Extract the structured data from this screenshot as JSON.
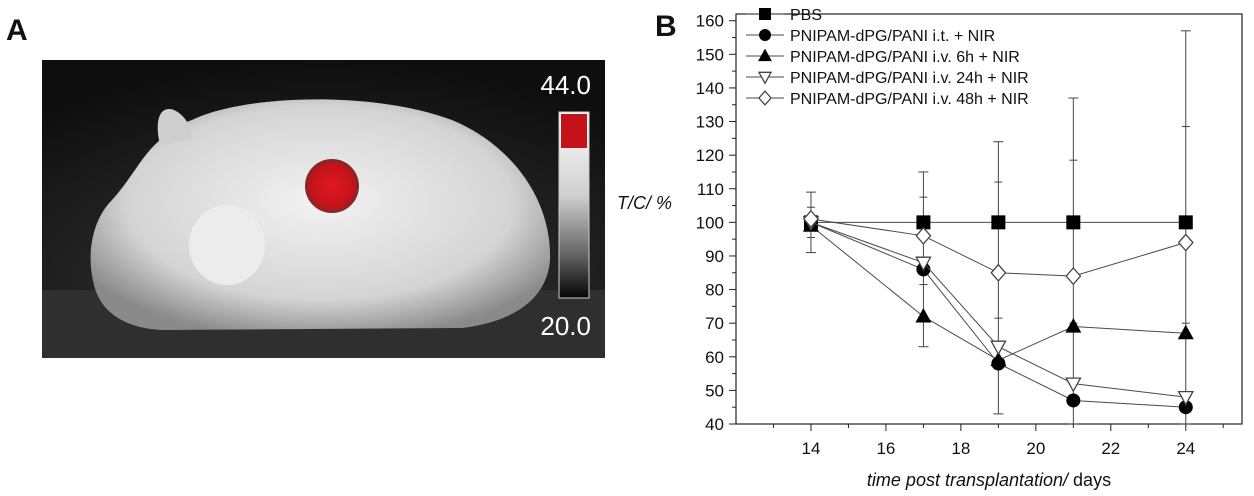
{
  "panels": {
    "a_letter": "A",
    "b_letter": "B"
  },
  "thermal_image": {
    "scale_max": "44.0",
    "scale_min": "20.0",
    "hotspot_color": "#cc1016"
  },
  "chart_data": {
    "type": "line",
    "xlabel_italic": "time post transplantation/",
    "xlabel_unit": "days",
    "ylabel": "T/C/ %",
    "xlim": [
      12,
      25.5
    ],
    "ylim": [
      40,
      162
    ],
    "x_ticks": [
      14,
      16,
      18,
      20,
      22,
      24
    ],
    "y_ticks": [
      40,
      50,
      60,
      70,
      80,
      90,
      100,
      110,
      120,
      130,
      140,
      150,
      160
    ],
    "legend_position": "top-left",
    "series": [
      {
        "name": "PBS",
        "marker": "square-filled",
        "points": [
          [
            14,
            100
          ],
          [
            17,
            100
          ],
          [
            19,
            100
          ],
          [
            21,
            100
          ],
          [
            24,
            100
          ]
        ]
      },
      {
        "name": "PNIPAM-dPG/PANI i.t. + NIR",
        "marker": "circle-filled",
        "points": [
          [
            14,
            100
          ],
          [
            17,
            86
          ],
          [
            19,
            58
          ],
          [
            21,
            47
          ],
          [
            24,
            45
          ]
        ]
      },
      {
        "name": "PNIPAM-dPG/PANI i.v. 6h + NIR",
        "marker": "triangle-up-filled",
        "points": [
          [
            14,
            99
          ],
          [
            17,
            72
          ],
          [
            19,
            59
          ],
          [
            21,
            69
          ],
          [
            24,
            67
          ]
        ]
      },
      {
        "name": "PNIPAM-dPG/PANI i.v. 24h + NIR",
        "marker": "triangle-down-open",
        "points": [
          [
            14,
            100
          ],
          [
            17,
            88
          ],
          [
            19,
            63
          ],
          [
            21,
            52
          ],
          [
            24,
            48
          ]
        ]
      },
      {
        "name": "PNIPAM-dPG/PANI i.v. 48h + NIR",
        "marker": "diamond-open",
        "points": [
          [
            14,
            101
          ],
          [
            17,
            96
          ],
          [
            19,
            85
          ],
          [
            21,
            84
          ],
          [
            24,
            94
          ]
        ]
      }
    ],
    "error_bars": [
      {
        "x": 14,
        "low": 91,
        "high": 109
      },
      {
        "x": 17,
        "low": 63,
        "high": 115
      },
      {
        "x": 19,
        "low": 43,
        "high": 124
      },
      {
        "x": 21,
        "low": 40,
        "high": 137
      },
      {
        "x": 24,
        "low": 40,
        "high": 157
      }
    ]
  }
}
